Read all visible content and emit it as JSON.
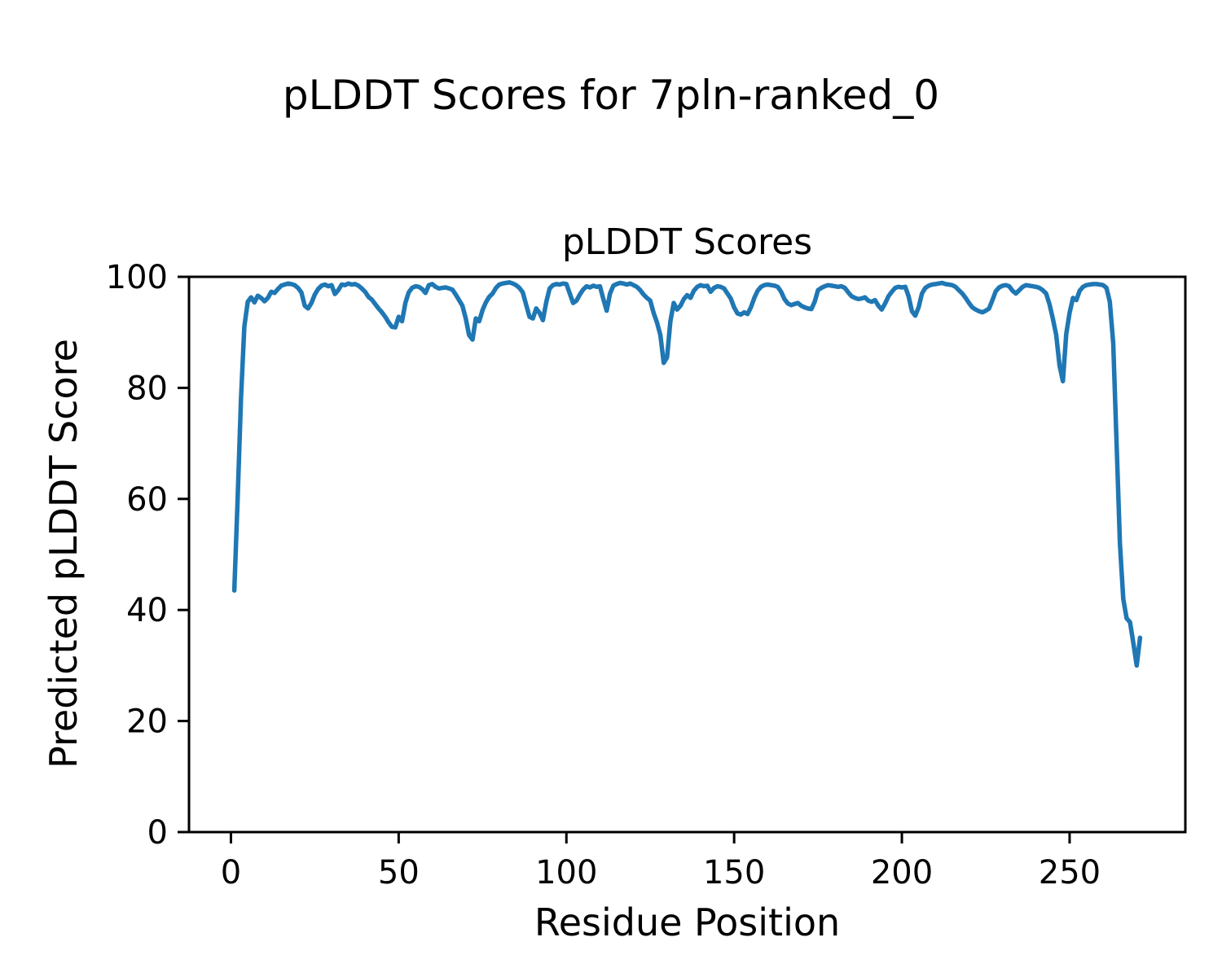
{
  "figure": {
    "background_color": "#ffffff",
    "text_color": "#000000"
  },
  "chart_data": {
    "type": "line",
    "suptitle": "pLDDT Scores for 7pln-ranked_0",
    "title": "pLDDT Scores",
    "xlabel": "Residue Position",
    "ylabel": "Predicted pLDDT Score",
    "xlim": [
      -12.5,
      284.5
    ],
    "ylim": [
      0,
      100
    ],
    "x_ticks": [
      0,
      50,
      100,
      150,
      200,
      250
    ],
    "y_ticks": [
      0,
      20,
      40,
      60,
      80,
      100
    ],
    "grid": false,
    "legend": "none",
    "line_color": "#1f77b4",
    "line_width": 5.5,
    "x_start": 1,
    "x_step": 1,
    "series": [
      {
        "name": "pLDDT",
        "values": [
          43.5,
          60.0,
          78.0,
          91.0,
          95.5,
          96.3,
          95.4,
          96.6,
          96.2,
          95.6,
          96.2,
          97.3,
          97.1,
          97.8,
          98.4,
          98.6,
          98.8,
          98.7,
          98.5,
          98.0,
          97.2,
          94.8,
          94.3,
          95.3,
          96.8,
          97.8,
          98.4,
          98.6,
          98.3,
          98.5,
          96.9,
          97.6,
          98.6,
          98.5,
          98.8,
          98.6,
          98.7,
          98.4,
          97.9,
          97.3,
          96.4,
          95.9,
          95.1,
          94.3,
          93.6,
          92.8,
          91.8,
          91.0,
          90.9,
          92.8,
          92.0,
          95.3,
          97.2,
          98.0,
          98.3,
          98.2,
          97.8,
          97.1,
          98.5,
          98.7,
          98.2,
          97.9,
          98.0,
          98.1,
          97.9,
          97.7,
          96.8,
          95.8,
          94.8,
          92.5,
          89.5,
          88.7,
          92.5,
          92.0,
          94.0,
          95.4,
          96.4,
          97.0,
          98.0,
          98.6,
          98.8,
          98.9,
          99.0,
          98.8,
          98.5,
          98.0,
          97.2,
          95.0,
          92.8,
          92.5,
          94.3,
          93.5,
          92.2,
          95.5,
          97.9,
          98.5,
          98.7,
          98.6,
          98.8,
          98.7,
          97.0,
          95.3,
          95.7,
          96.8,
          97.7,
          98.3,
          98.1,
          98.4,
          98.2,
          98.3,
          96.0,
          93.9,
          97.0,
          98.4,
          98.7,
          98.9,
          98.8,
          98.6,
          98.8,
          98.5,
          98.2,
          97.6,
          96.8,
          96.2,
          95.7,
          93.5,
          91.8,
          89.5,
          84.5,
          85.5,
          92.0,
          95.3,
          94.1,
          94.8,
          96.0,
          96.7,
          96.2,
          97.5,
          98.2,
          98.5,
          98.3,
          98.4,
          97.3,
          98.0,
          98.3,
          98.2,
          97.9,
          97.0,
          96.1,
          94.5,
          93.4,
          93.2,
          93.6,
          93.3,
          94.5,
          96.2,
          97.5,
          98.2,
          98.5,
          98.6,
          98.5,
          98.4,
          98.2,
          97.3,
          96.0,
          95.2,
          94.9,
          95.1,
          95.3,
          94.8,
          94.5,
          94.3,
          94.2,
          95.5,
          97.6,
          98.0,
          98.3,
          98.5,
          98.4,
          98.3,
          98.2,
          98.3,
          98.0,
          97.2,
          96.5,
          96.2,
          96.0,
          96.1,
          96.3,
          95.7,
          95.5,
          95.8,
          94.8,
          94.1,
          95.2,
          96.5,
          97.3,
          98.0,
          98.2,
          98.1,
          98.2,
          96.5,
          93.8,
          93.0,
          94.5,
          97.0,
          98.0,
          98.4,
          98.6,
          98.7,
          98.8,
          98.9,
          98.7,
          98.6,
          98.5,
          98.2,
          97.6,
          97.0,
          96.2,
          95.3,
          94.5,
          94.1,
          93.8,
          93.6,
          93.9,
          94.3,
          95.8,
          97.4,
          98.1,
          98.4,
          98.5,
          98.3,
          97.5,
          97.0,
          97.6,
          98.2,
          98.5,
          98.4,
          98.3,
          98.2,
          98.0,
          97.6,
          97.0,
          95.1,
          92.5,
          89.5,
          84.0,
          81.2,
          89.7,
          93.5,
          96.2,
          95.8,
          97.5,
          98.2,
          98.5,
          98.6,
          98.7,
          98.7,
          98.6,
          98.5,
          98.0,
          95.5,
          88.0,
          70.0,
          52.0,
          42.0,
          38.5,
          37.8,
          34.0,
          30.0,
          35.0
        ]
      }
    ]
  }
}
